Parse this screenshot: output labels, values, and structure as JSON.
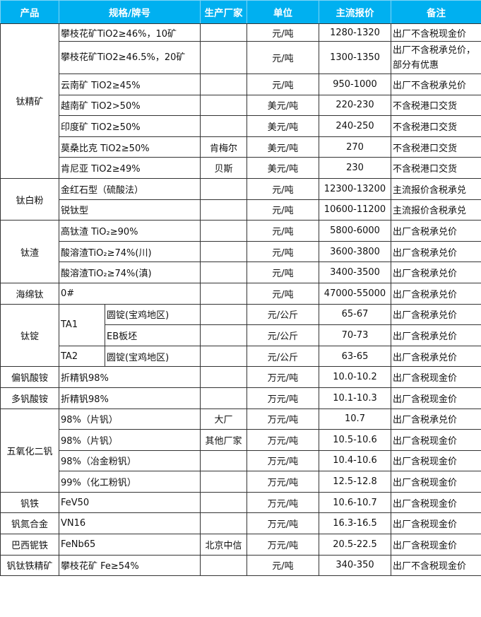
{
  "headers": [
    "产品",
    "规格/牌号",
    "生产厂家",
    "单位",
    "主流报价",
    "备注"
  ],
  "accent_color": "#00b0f0",
  "groups": [
    {
      "product": "钛精矿",
      "rows": [
        {
          "spec": "攀枝花矿TiO2≥46%，10矿",
          "maker": "",
          "unit": "元/吨",
          "price": "1280-1320",
          "note": "出厂不含税现金价"
        },
        {
          "spec": "攀枝花矿TiO2≥46.5%，20矿",
          "maker": "",
          "unit": "元/吨",
          "price": "1300-1350",
          "note": "出厂不含税承兑价，部分有优惠"
        },
        {
          "spec": "云南矿 TiO2≥45%",
          "maker": "",
          "unit": "元/吨",
          "price": "950-1000",
          "note": "出厂不含税承兑价"
        },
        {
          "spec": "越南矿 TiO2>50%",
          "maker": "",
          "unit": "美元/吨",
          "price": "220-230",
          "note": "不含税港口交货"
        },
        {
          "spec": "印度矿 TiO2≥50%",
          "maker": "",
          "unit": "美元/吨",
          "price": "240-250",
          "note": "不含税港口交货"
        },
        {
          "spec": "莫桑比克 TiO2≥50%",
          "maker": "肯梅尔",
          "unit": "美元/吨",
          "price": "270",
          "note": "不含税港口交货"
        },
        {
          "spec": "肯尼亚 TiO2≥49%",
          "maker": "贝斯",
          "unit": "美元/吨",
          "price": "230",
          "note": "不含税港口交货"
        }
      ]
    },
    {
      "product": "钛白粉",
      "rows": [
        {
          "spec": "金红石型（硫酸法）",
          "maker": "",
          "unit": "元/吨",
          "price": "12300-13200",
          "note": "主流报价含税承兑"
        },
        {
          "spec": "锐钛型",
          "maker": "",
          "unit": "元/吨",
          "price": "10600-11200",
          "note": "主流报价含税承兑"
        }
      ]
    },
    {
      "product": "钛渣",
      "rows": [
        {
          "spec": "高钛渣 TiO₂≥90%",
          "maker": "",
          "unit": "元/吨",
          "price": "5800-6000",
          "note": "出厂含税承兑价"
        },
        {
          "spec": "酸溶渣TiO₂≥74%(川)",
          "maker": "",
          "unit": "元/吨",
          "price": "3600-3800",
          "note": "出厂含税承兑价"
        },
        {
          "spec": "酸溶渣TiO₂≥74%(滇)",
          "maker": "",
          "unit": "元/吨",
          "price": "3400-3500",
          "note": "出厂含税承兑价"
        }
      ]
    },
    {
      "product": "海绵钛",
      "rows": [
        {
          "spec": "0#",
          "maker": "",
          "unit": "元/吨",
          "price": "47000-55000",
          "note": "出厂含税承兑价"
        }
      ]
    },
    {
      "product": "钛锭",
      "rows": [
        {
          "grade": "TA1",
          "grade_span": 2,
          "spec": "圆锭(宝鸡地区)",
          "maker": "",
          "unit": "元/公斤",
          "price": "65-67",
          "note": "出厂含税承兑价"
        },
        {
          "spec": "EB板坯",
          "maker": "",
          "unit": "元/公斤",
          "price": "70-73",
          "note": "出厂含税承兑价"
        },
        {
          "grade": "TA2",
          "grade_span": 1,
          "spec": "圆锭(宝鸡地区)",
          "maker": "",
          "unit": "元/公斤",
          "price": "63-65",
          "note": "出厂含税承兑价"
        }
      ]
    },
    {
      "product": "偏钒酸铵",
      "rows": [
        {
          "spec": "折精钒98%",
          "maker": "",
          "unit": "万元/吨",
          "price": "10.0-10.2",
          "note": "出厂含税现金价"
        }
      ]
    },
    {
      "product": "多钒酸铵",
      "rows": [
        {
          "spec": "折精钒98%",
          "maker": "",
          "unit": "万元/吨",
          "price": "10.1-10.3",
          "note": "出厂含税现金价"
        }
      ]
    },
    {
      "product": "五氧化二钒",
      "rows": [
        {
          "spec": "98%（片钒）",
          "maker": "大厂",
          "unit": "万元/吨",
          "price": "10.7",
          "note": "出厂含税承兑价"
        },
        {
          "spec": "98%（片钒）",
          "maker": "其他厂家",
          "unit": "万元/吨",
          "price": "10.5-10.6",
          "note": "出厂含税现金价"
        },
        {
          "spec": "98%（冶金粉钒）",
          "maker": "",
          "unit": "万元/吨",
          "price": "10.4-10.6",
          "note": "出厂含税现金价"
        },
        {
          "spec": "99%（化工粉钒）",
          "maker": "",
          "unit": "万元/吨",
          "price": "12.5-12.8",
          "note": "出厂含税现金价"
        }
      ]
    },
    {
      "product": "钒铁",
      "rows": [
        {
          "spec": "FeV50",
          "maker": "",
          "unit": "万元/吨",
          "price": "10.6-10.7",
          "note": "出厂含税现金价"
        }
      ]
    },
    {
      "product": "钒氮合金",
      "rows": [
        {
          "spec": "VN16",
          "maker": "",
          "unit": "万元/吨",
          "price": "16.3-16.5",
          "note": "出厂含税现金价"
        }
      ]
    },
    {
      "product": "巴西铌铁",
      "rows": [
        {
          "spec": "FeNb65",
          "maker": "北京中信",
          "unit": "万元/吨",
          "price": "20.5-22.5",
          "note": "出厂含税现金价"
        }
      ]
    },
    {
      "product": "钒钛铁精矿",
      "rows": [
        {
          "spec": "攀枝花矿 Fe≥54%",
          "maker": "",
          "unit": "元/吨",
          "price": "340-350",
          "note": "出厂不含税现金价"
        }
      ]
    }
  ]
}
